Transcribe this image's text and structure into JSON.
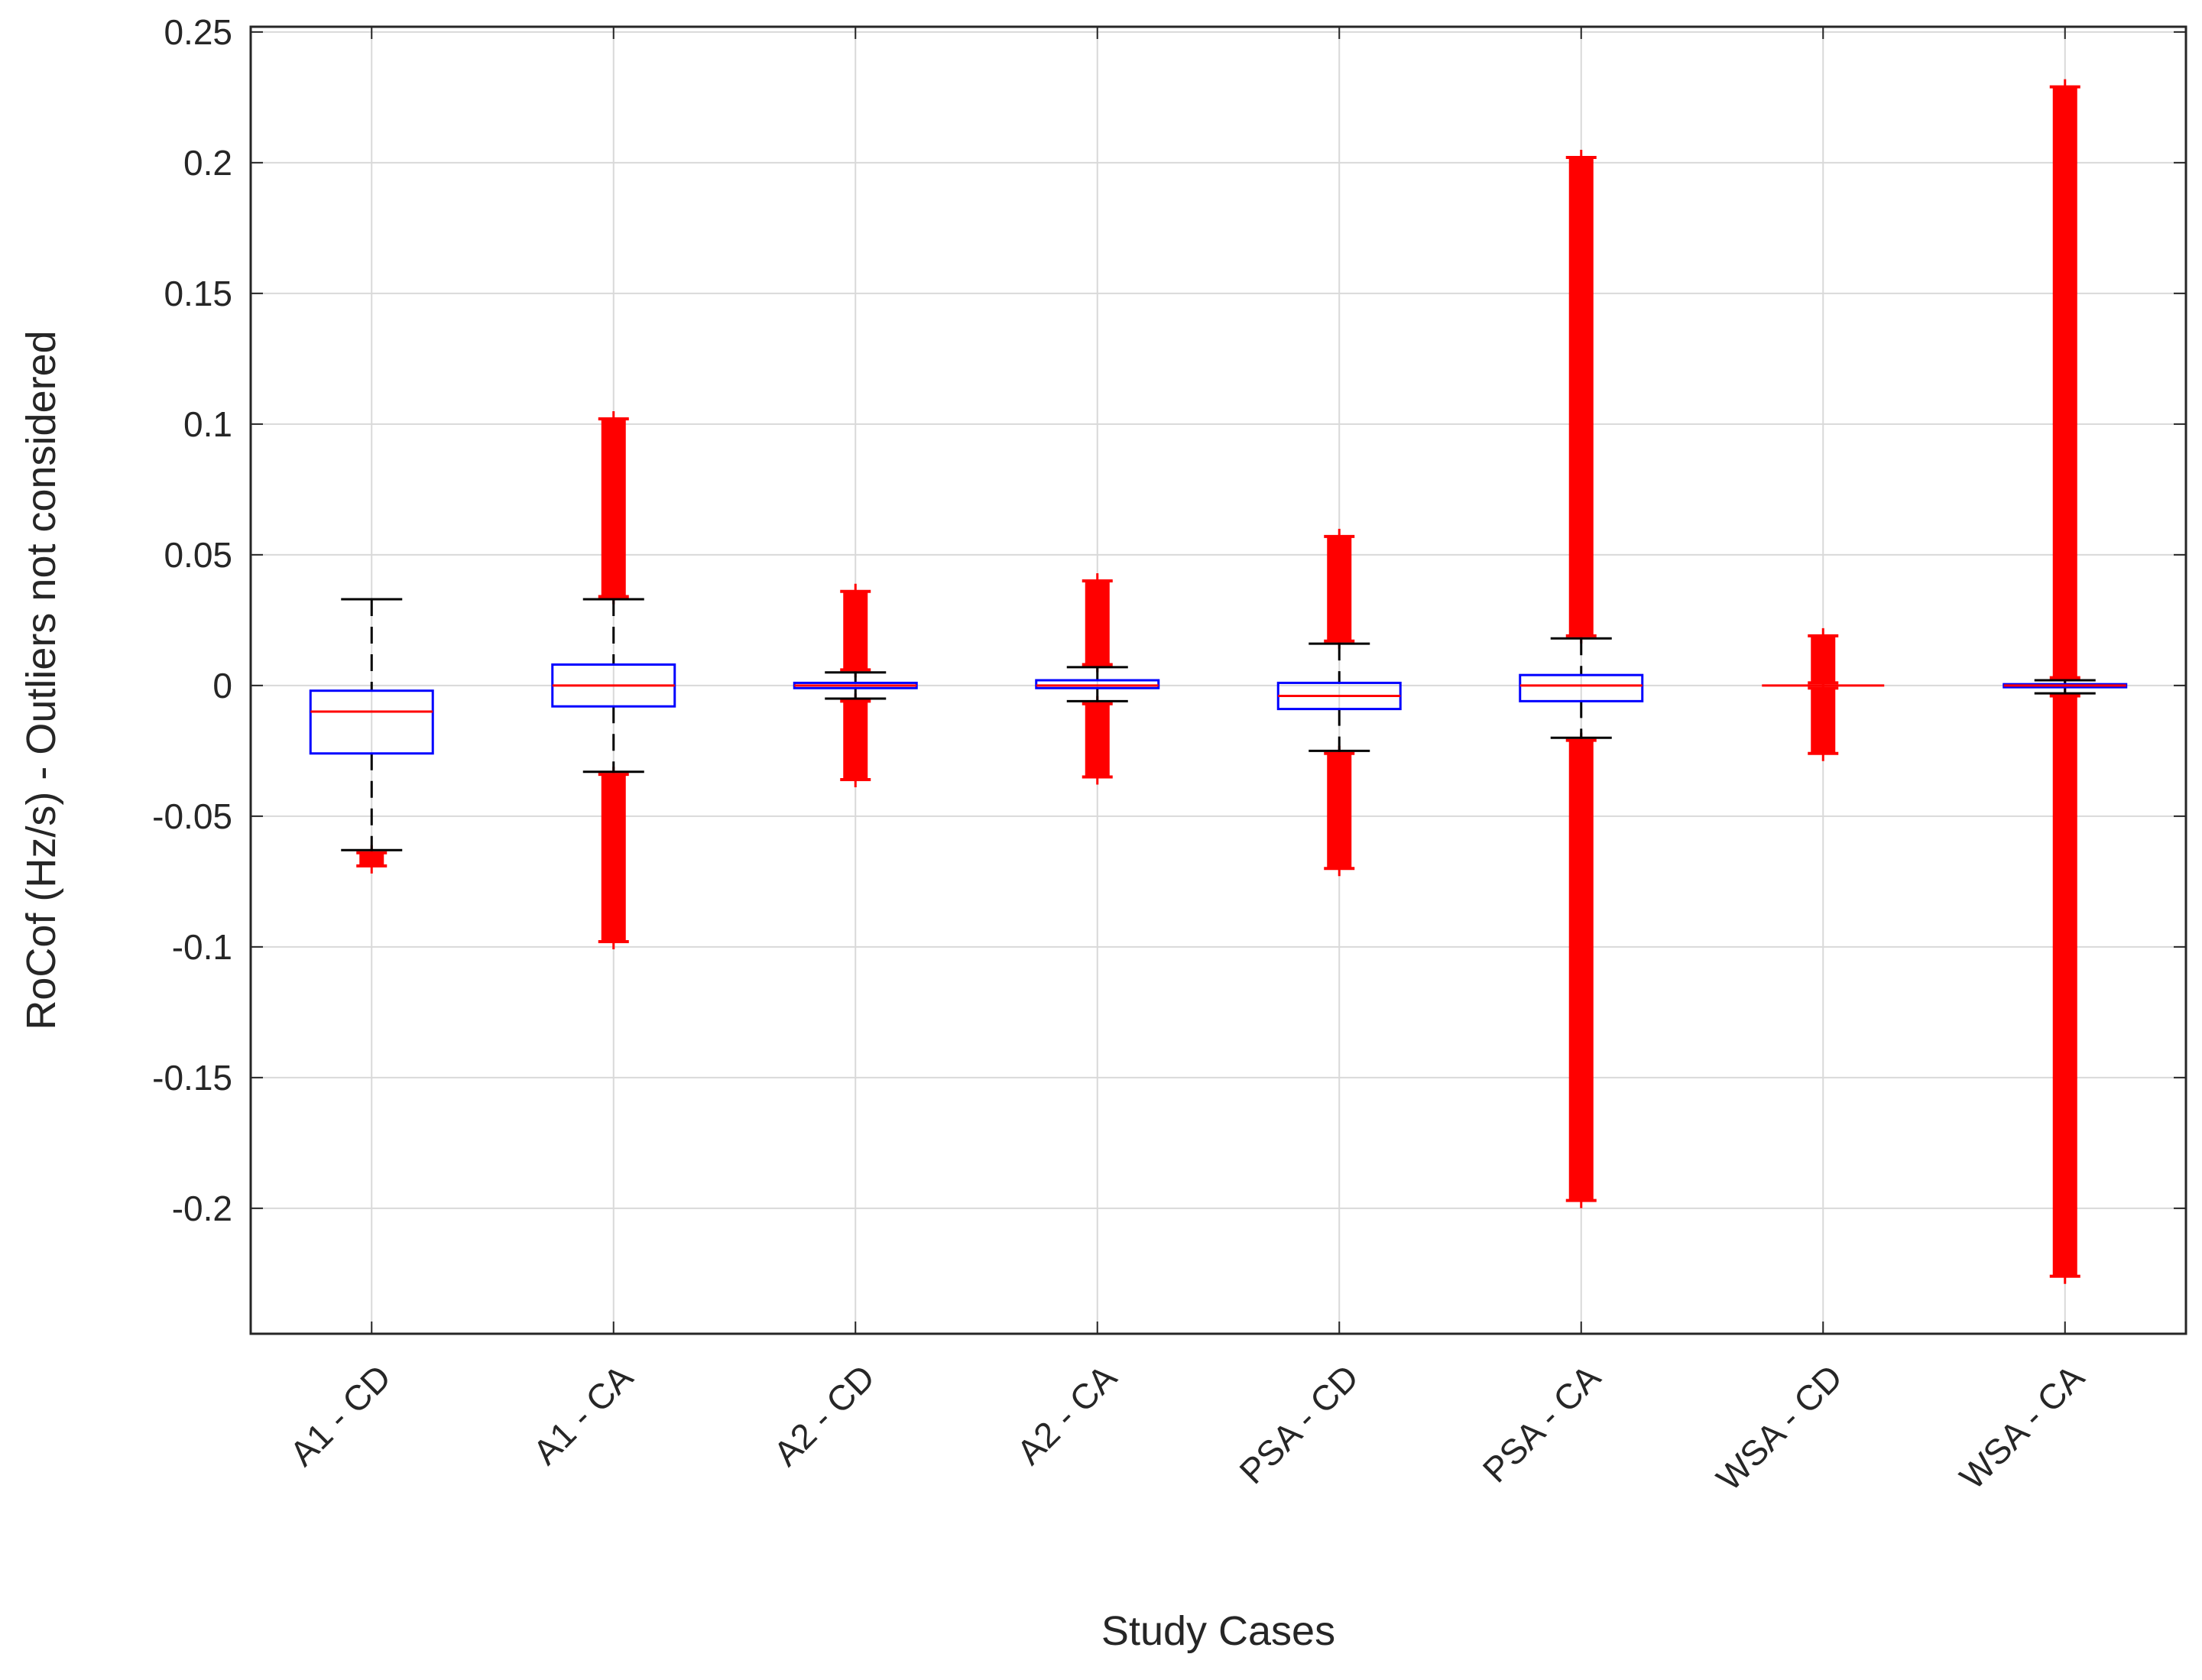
{
  "chart_data": {
    "type": "box",
    "title": "",
    "xlabel": "Study Cases",
    "ylabel": "RoCof (Hz/s) - Outliers not considered",
    "ylim": [
      -0.248,
      0.252
    ],
    "yticks": [
      -0.2,
      -0.15,
      -0.1,
      -0.05,
      0,
      0.05,
      0.1,
      0.15,
      0.2,
      0.25
    ],
    "ytick_labels": [
      "-0.2",
      "-0.15",
      "-0.1",
      "-0.05",
      "0",
      "0.05",
      "0.1",
      "0.15",
      "0.2",
      "0.25"
    ],
    "grid": true,
    "colors": {
      "box": "#0000ff",
      "median": "#ff0000",
      "whisker": "#000000",
      "outlier": "#ff0000",
      "grid": "#d9d9d9",
      "axis": "#262626"
    },
    "categories": [
      "A1 - CD",
      "A1 - CA",
      "A2 - CD",
      "A2 - CA",
      "PSA - CD",
      "PSA - CA",
      "WSA - CD",
      "WSA - CA"
    ],
    "boxes": [
      {
        "label": "A1 - CD",
        "q1": -0.026,
        "median": -0.01,
        "q3": -0.002,
        "whisker_low": -0.063,
        "whisker_high": 0.033,
        "outliers": [
          [
            -0.069,
            -0.064
          ]
        ]
      },
      {
        "label": "A1 - CA",
        "q1": -0.008,
        "median": 0.0,
        "q3": 0.008,
        "whisker_low": -0.033,
        "whisker_high": 0.033,
        "outliers": [
          [
            -0.098,
            -0.034
          ],
          [
            0.034,
            0.102
          ]
        ]
      },
      {
        "label": "A2 - CD",
        "q1": -0.001,
        "median": 0.0,
        "q3": 0.001,
        "whisker_low": -0.005,
        "whisker_high": 0.005,
        "outliers": [
          [
            -0.036,
            -0.006
          ],
          [
            0.006,
            0.036
          ]
        ]
      },
      {
        "label": "A2 - CA",
        "q1": -0.001,
        "median": 0.0,
        "q3": 0.002,
        "whisker_low": -0.006,
        "whisker_high": 0.007,
        "outliers": [
          [
            -0.035,
            -0.007
          ],
          [
            0.008,
            0.04
          ]
        ]
      },
      {
        "label": "PSA - CD",
        "q1": -0.009,
        "median": -0.004,
        "q3": 0.001,
        "whisker_low": -0.025,
        "whisker_high": 0.016,
        "outliers": [
          [
            -0.07,
            -0.026
          ],
          [
            0.017,
            0.057
          ]
        ]
      },
      {
        "label": "PSA - CA",
        "q1": -0.006,
        "median": 0.0,
        "q3": 0.004,
        "whisker_low": -0.02,
        "whisker_high": 0.018,
        "outliers": [
          [
            -0.197,
            -0.021
          ],
          [
            0.019,
            0.202
          ]
        ]
      },
      {
        "label": "WSA - CD",
        "q1": 0.0,
        "median": 0.0,
        "q3": 0.0,
        "whisker_low": 0.0,
        "whisker_high": 0.0,
        "outliers": [
          [
            -0.026,
            -0.001
          ],
          [
            0.001,
            0.019
          ]
        ]
      },
      {
        "label": "WSA - CA",
        "q1": -0.0005,
        "median": 0.0,
        "q3": 0.0005,
        "whisker_low": -0.003,
        "whisker_high": 0.002,
        "outliers": [
          [
            -0.226,
            -0.004
          ],
          [
            0.003,
            0.229
          ]
        ]
      }
    ]
  }
}
